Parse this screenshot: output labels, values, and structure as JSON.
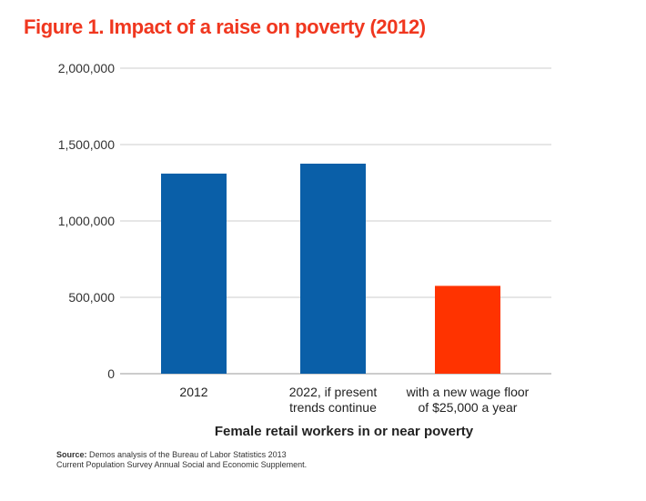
{
  "figure": {
    "title": "Figure 1. Impact of a raise on poverty (2012)",
    "title_color": "#f0371f"
  },
  "chart_data": {
    "type": "bar",
    "title": "Figure 1. Impact of a raise on poverty (2012)",
    "xlabel": "Female retail workers in or near poverty",
    "ylabel": "",
    "ylim": [
      0,
      2000000
    ],
    "yticks": [
      0,
      500000,
      1000000,
      1500000,
      2000000
    ],
    "ytick_labels": [
      "0",
      "500,000",
      "1,000,000",
      "1,500,000",
      "2,000,000"
    ],
    "grid": true,
    "legend": "none",
    "categories": [
      [
        "2012"
      ],
      [
        "2022, if present",
        "trends continue"
      ],
      [
        "with a new wage floor",
        "of $25,000 a year"
      ]
    ],
    "values": [
      1310000,
      1375000,
      575000
    ],
    "colors": [
      "#0a5fa8",
      "#0a5fa8",
      "#ff3300"
    ]
  },
  "source": {
    "label": "Source:",
    "line1": "Demos analysis of the Bureau of Labor Statistics 2013",
    "line2": "Current Population Survey Annual Social and Economic Supplement."
  }
}
